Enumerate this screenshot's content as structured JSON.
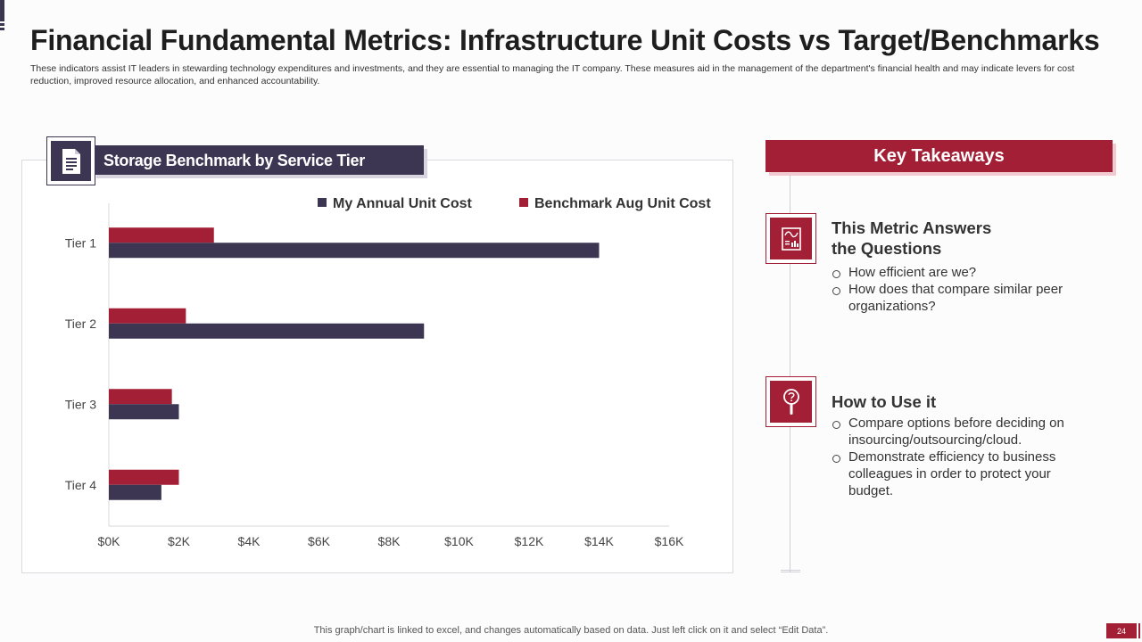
{
  "title": "Financial Fundamental Metrics: Infrastructure Unit Costs vs Target/Benchmarks",
  "subtitle": "These indicators assist IT leaders in stewarding technology expenditures and investments, and they are essential to managing the IT company. These measures aid in the management of the department's financial health and may indicate levers for cost reduction, improved resource allocation, and enhanced accountability.",
  "chart_panel": {
    "icon": "document-icon"
  },
  "chart_data": {
    "type": "bar",
    "orientation": "horizontal",
    "title": "Storage Benchmark by Service Tier",
    "categories": [
      "Tier 1",
      "Tier 2",
      "Tier 3",
      "Tier 4"
    ],
    "series": [
      {
        "name": "My Annual Unit Cost",
        "color": "#3c3652",
        "values": [
          14000,
          9000,
          2000,
          1500
        ]
      },
      {
        "name": "Benchmark Aug Unit Cost",
        "color": "#a31f35",
        "values": [
          3000,
          2200,
          1800,
          2000
        ]
      }
    ],
    "xlim": [
      0,
      16000
    ],
    "x_ticks": [
      0,
      2000,
      4000,
      6000,
      8000,
      10000,
      12000,
      14000,
      16000
    ],
    "x_tick_labels": [
      "$0K",
      "$2K",
      "$4K",
      "$6K",
      "$8K",
      "$10K",
      "$12K",
      "$14K",
      "$16K"
    ],
    "legend_position": "top-right",
    "grid": false
  },
  "key_takeaways": {
    "header": "Key Takeaways",
    "accent_color": "#a31f35",
    "sections": [
      {
        "icon": "chart-report-icon",
        "title_line1": "This Metric Answers",
        "title_line2": "the Questions",
        "items": [
          "How efficient are we?",
          "How does that compare similar peer organizations?"
        ]
      },
      {
        "icon": "magnifier-question-icon",
        "title_line1": "How to Use it",
        "items": [
          "Compare options before deciding on insourcing/outsourcing/cloud.",
          "Demonstrate efficiency to business colleagues in order to protect your budget."
        ]
      }
    ]
  },
  "footer": {
    "note": "This graph/chart is linked to excel,  and changes automatically based on data. Just left click on it and select “Edit Data”.",
    "page_number": "24"
  }
}
